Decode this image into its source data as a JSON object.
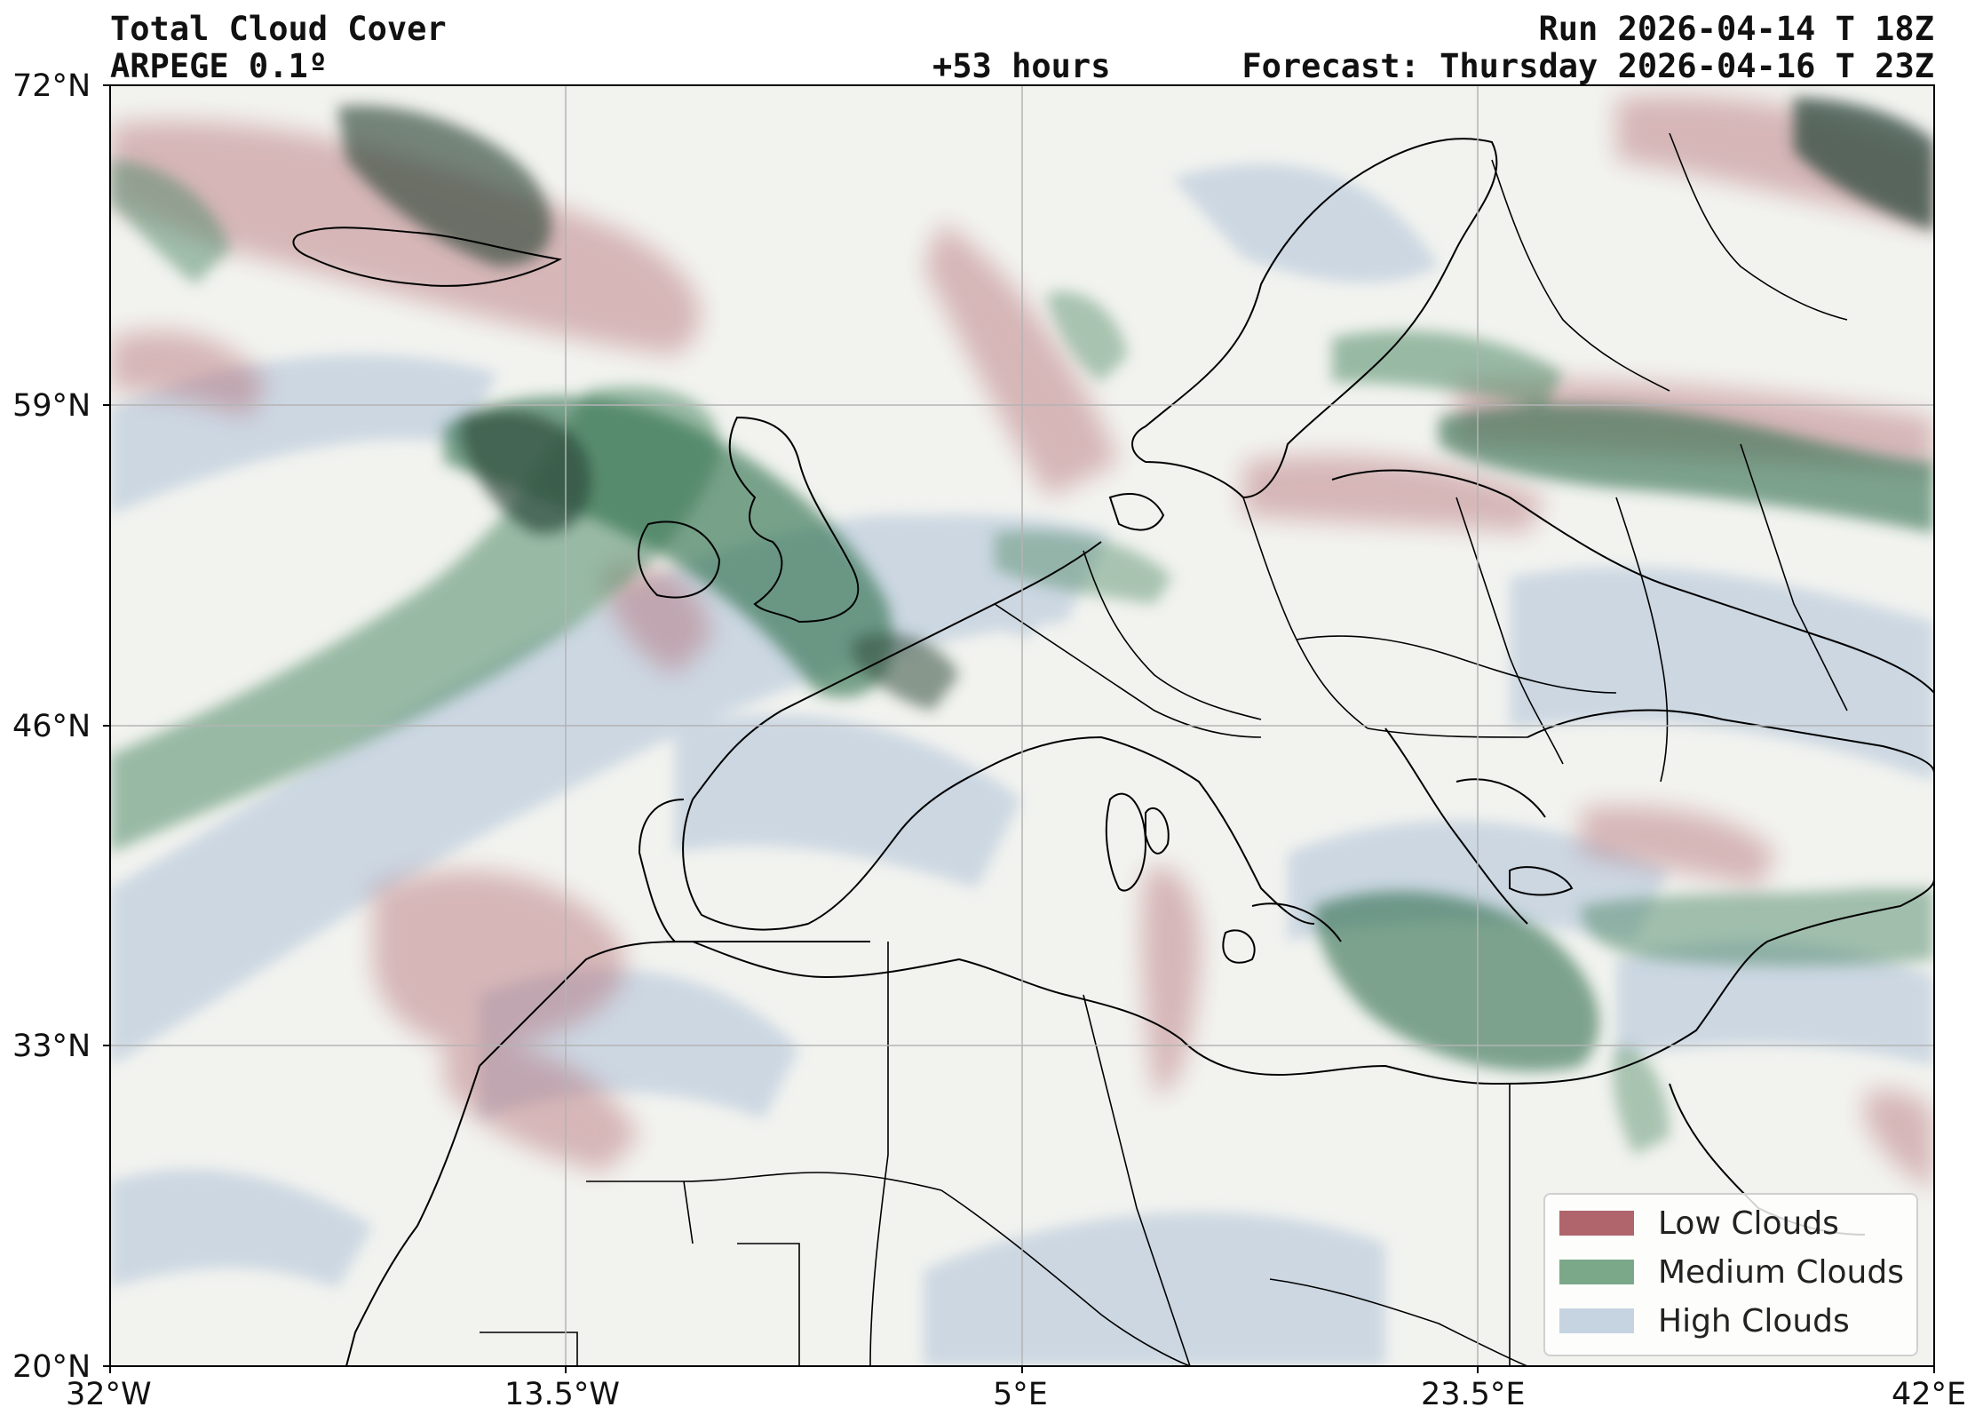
{
  "header": {
    "title": "Total Cloud Cover",
    "model": "ARPEGE 0.1º",
    "lead_time": "+53 hours",
    "run": "Run 2026-04-14 T 18Z",
    "forecast": "Forecast: Thursday 2026-04-16 T 23Z"
  },
  "axes": {
    "lat_ticks": [
      "72°N",
      "59°N",
      "46°N",
      "33°N",
      "20°N"
    ],
    "lon_ticks": [
      "32°W",
      "13.5°W",
      "5°E",
      "23.5°E",
      "42°E"
    ],
    "lat_range": [
      20,
      72
    ],
    "lon_range": [
      -32,
      42
    ],
    "grid": true
  },
  "legend": {
    "position": "bottom-right",
    "items": [
      {
        "label": "Low Clouds",
        "color": "#b0646c",
        "icon": "swatch"
      },
      {
        "label": "Medium Clouds",
        "color": "#7ca88a",
        "icon": "swatch"
      },
      {
        "label": "High Clouds",
        "color": "#c6d3e0",
        "icon": "swatch"
      }
    ]
  },
  "colors": {
    "background": "#f2f3ef",
    "low": "#b0646c",
    "medium": "#2f6d4c",
    "medium_dark": "#2e4a3c",
    "high": "#c6d3e0",
    "coast": "#000000"
  }
}
